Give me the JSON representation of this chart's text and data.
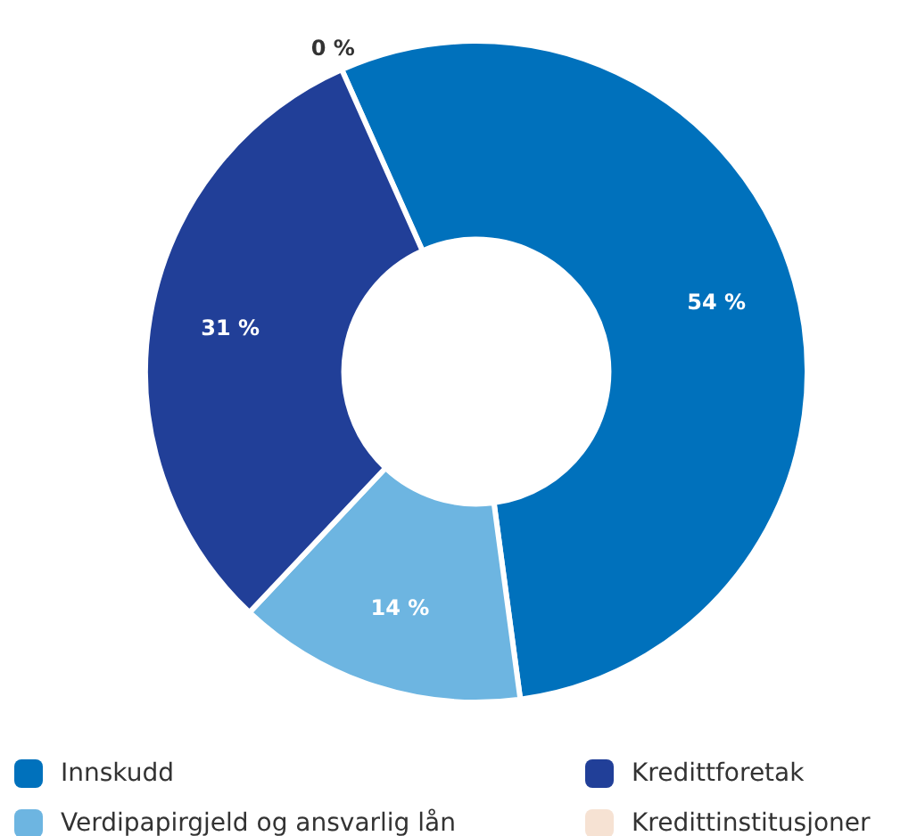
{
  "chart_data": {
    "type": "donut",
    "categories": [
      "Innskudd",
      "Verdipapirgjeld og ansvarlig lån",
      "Kredittforetak",
      "Kredittinstitusjoner"
    ],
    "values": [
      54,
      14,
      31,
      0
    ],
    "colors": [
      "#0071bc",
      "#6db5e1",
      "#213f98",
      "#f6e2d3"
    ],
    "value_labels": [
      "54 %",
      "14 %",
      "31 %",
      "0 %"
    ],
    "legend": "bottom"
  }
}
